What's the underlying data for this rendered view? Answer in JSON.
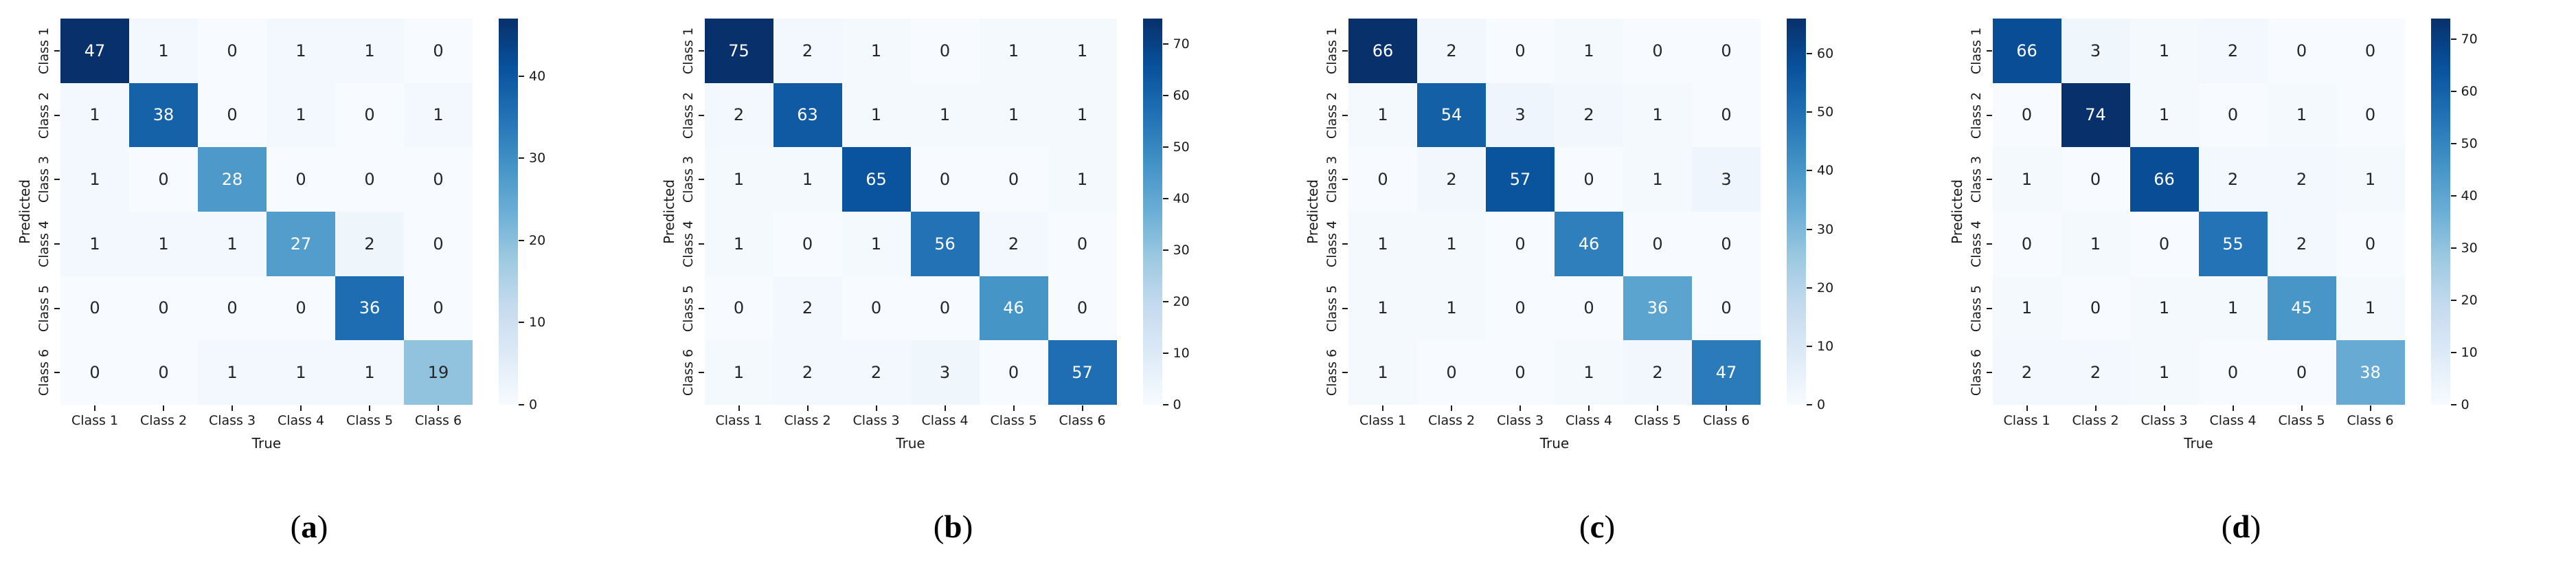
{
  "figure": {
    "ylabel": "Predicted",
    "xlabel": "True",
    "classes": [
      "Class 1",
      "Class 2",
      "Class 3",
      "Class 4",
      "Class 5",
      "Class 6"
    ],
    "colormap": "Blues",
    "colormap_stops": [
      "#f7fbff",
      "#deebf7",
      "#c6dbef",
      "#9ecae1",
      "#6baed6",
      "#4292c6",
      "#2171b5",
      "#08519c",
      "#08306b"
    ],
    "annotation_dark_text_color": "#262626",
    "annotation_light_text_color": "#ffffff"
  },
  "chart_data": [
    {
      "type": "heatmap",
      "panel_label": "(a)",
      "caption": [
        "(",
        "a",
        ")"
      ],
      "xlabel": "True",
      "ylabel": "Predicted",
      "x_categories": [
        "Class 1",
        "Class 2",
        "Class 3",
        "Class 4",
        "Class 5",
        "Class 6"
      ],
      "y_categories": [
        "Class 1",
        "Class 2",
        "Class 3",
        "Class 4",
        "Class 5",
        "Class 6"
      ],
      "matrix": [
        [
          47,
          1,
          0,
          1,
          1,
          0
        ],
        [
          1,
          38,
          0,
          1,
          0,
          1
        ],
        [
          1,
          0,
          28,
          0,
          0,
          0
        ],
        [
          1,
          1,
          1,
          27,
          2,
          0
        ],
        [
          0,
          0,
          0,
          0,
          36,
          0
        ],
        [
          0,
          0,
          1,
          1,
          1,
          19
        ]
      ],
      "vmin": 0,
      "vmax": 47,
      "colorbar_ticks": [
        0,
        10,
        20,
        30,
        40
      ],
      "colormap": "Blues",
      "legend_position": "right-colorbar",
      "grid": false
    },
    {
      "type": "heatmap",
      "panel_label": "(b)",
      "caption": [
        "(",
        "b",
        ")"
      ],
      "xlabel": "True",
      "ylabel": "Predicted",
      "x_categories": [
        "Class 1",
        "Class 2",
        "Class 3",
        "Class 4",
        "Class 5",
        "Class 6"
      ],
      "y_categories": [
        "Class 1",
        "Class 2",
        "Class 3",
        "Class 4",
        "Class 5",
        "Class 6"
      ],
      "matrix": [
        [
          75,
          2,
          1,
          0,
          1,
          1
        ],
        [
          2,
          63,
          1,
          1,
          1,
          1
        ],
        [
          1,
          1,
          65,
          0,
          0,
          1
        ],
        [
          1,
          0,
          1,
          56,
          2,
          0
        ],
        [
          0,
          2,
          0,
          0,
          46,
          0
        ],
        [
          1,
          2,
          2,
          3,
          0,
          57
        ]
      ],
      "vmin": 0,
      "vmax": 75,
      "colorbar_ticks": [
        0,
        10,
        20,
        30,
        40,
        50,
        60,
        70
      ],
      "colormap": "Blues",
      "legend_position": "right-colorbar",
      "grid": false
    },
    {
      "type": "heatmap",
      "panel_label": "(c)",
      "caption": [
        "(",
        "c",
        ")"
      ],
      "xlabel": "True",
      "ylabel": "Predicted",
      "x_categories": [
        "Class 1",
        "Class 2",
        "Class 3",
        "Class 4",
        "Class 5",
        "Class 6"
      ],
      "y_categories": [
        "Class 1",
        "Class 2",
        "Class 3",
        "Class 4",
        "Class 5",
        "Class 6"
      ],
      "matrix": [
        [
          66,
          2,
          0,
          1,
          0,
          0
        ],
        [
          1,
          54,
          3,
          2,
          1,
          0
        ],
        [
          0,
          2,
          57,
          0,
          1,
          3
        ],
        [
          1,
          1,
          0,
          46,
          0,
          0
        ],
        [
          1,
          1,
          0,
          0,
          36,
          0
        ],
        [
          1,
          0,
          0,
          1,
          2,
          47
        ]
      ],
      "vmin": 0,
      "vmax": 66,
      "colorbar_ticks": [
        0,
        10,
        20,
        30,
        40,
        50,
        60
      ],
      "colormap": "Blues",
      "legend_position": "right-colorbar",
      "grid": false
    },
    {
      "type": "heatmap",
      "panel_label": "(d)",
      "caption": [
        "(",
        "d",
        ")"
      ],
      "xlabel": "True",
      "ylabel": "Predicted",
      "x_categories": [
        "Class 1",
        "Class 2",
        "Class 3",
        "Class 4",
        "Class 5",
        "Class 6"
      ],
      "y_categories": [
        "Class 1",
        "Class 2",
        "Class 3",
        "Class 4",
        "Class 5",
        "Class 6"
      ],
      "matrix": [
        [
          66,
          3,
          1,
          2,
          0,
          0
        ],
        [
          0,
          74,
          1,
          0,
          1,
          0
        ],
        [
          1,
          0,
          66,
          2,
          2,
          1
        ],
        [
          0,
          1,
          0,
          55,
          2,
          0
        ],
        [
          1,
          0,
          1,
          1,
          45,
          1
        ],
        [
          2,
          2,
          1,
          0,
          0,
          38
        ]
      ],
      "vmin": 0,
      "vmax": 74,
      "colorbar_ticks": [
        0,
        10,
        20,
        30,
        40,
        50,
        60,
        70
      ],
      "colormap": "Blues",
      "legend_position": "right-colorbar",
      "grid": false
    }
  ]
}
